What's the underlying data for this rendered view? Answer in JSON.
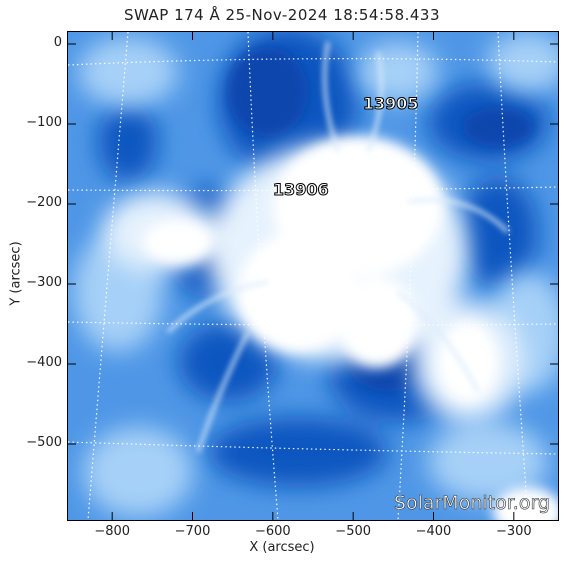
{
  "title": "SWAP 174 Å 25-Nov-2024 18:54:58.433",
  "axes": {
    "xlabel": "X (arcsec)",
    "ylabel": "Y (arcsec)",
    "x_range": [
      -855,
      -245
    ],
    "y_range": [
      -595,
      15
    ],
    "x_ticks": [
      "−800",
      "−700",
      "−600",
      "−500",
      "−400",
      "−300"
    ],
    "x_tick_values": [
      -800,
      -700,
      -600,
      -500,
      -400,
      -300
    ],
    "y_ticks": [
      "0",
      "−100",
      "−200",
      "−300",
      "−400",
      "−500"
    ],
    "y_tick_values": [
      0,
      -100,
      -200,
      -300,
      -400,
      -500
    ]
  },
  "regions": [
    {
      "label": "13905",
      "x": -458,
      "y": -75
    },
    {
      "label": "13906",
      "x": -570,
      "y": -183
    }
  ],
  "watermark": "SolarMonitor.org",
  "colors": {
    "deep_blue": "#0a4fb8",
    "mid_blue": "#3a86e0",
    "light_blue": "#a9d2f7",
    "bright": "#ffffff",
    "grid": "#ffffff"
  }
}
